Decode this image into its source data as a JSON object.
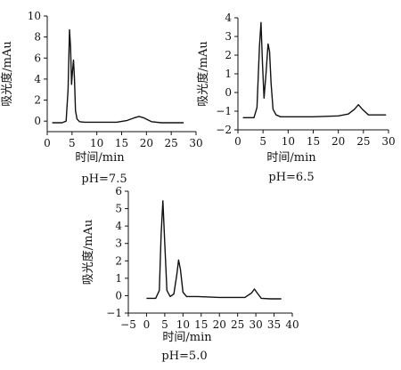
{
  "chart_data": [
    {
      "type": "line",
      "caption": "pH=7.5",
      "xlabel": "时间/min",
      "ylabel": "吸光度/mAu",
      "xlim": [
        0,
        30
      ],
      "ylim": [
        -1,
        10
      ],
      "xticks": [
        0,
        5,
        10,
        15,
        20,
        25,
        30
      ],
      "yticks": [
        0,
        2,
        4,
        6,
        8,
        10
      ],
      "x": [
        1,
        3.0,
        3.8,
        4.2,
        4.5,
        4.7,
        4.9,
        5.1,
        5.3,
        5.5,
        5.7,
        6.0,
        6.5,
        7.5,
        10,
        14,
        16,
        17.5,
        18.5,
        19.5,
        21,
        23,
        27.5
      ],
      "y": [
        -0.15,
        -0.15,
        0.0,
        3.0,
        8.7,
        7.0,
        3.5,
        4.8,
        5.8,
        4.0,
        1.0,
        0.2,
        -0.05,
        -0.1,
        -0.1,
        -0.1,
        0.05,
        0.3,
        0.45,
        0.3,
        -0.05,
        -0.15,
        -0.15
      ]
    },
    {
      "type": "line",
      "caption": "pH=6.5",
      "xlabel": "时间/min",
      "ylabel": "吸光度/mAu",
      "xlim": [
        0,
        30
      ],
      "ylim": [
        -2,
        4
      ],
      "xticks": [
        0,
        5,
        10,
        15,
        20,
        25,
        30
      ],
      "yticks": [
        -2,
        -1,
        0,
        1,
        2,
        3,
        4
      ],
      "x": [
        1,
        3.2,
        3.8,
        4.3,
        4.6,
        4.9,
        5.2,
        5.6,
        6.0,
        6.3,
        6.6,
        7.0,
        7.6,
        8.5,
        10,
        15,
        20,
        22,
        23.2,
        24,
        24.8,
        26,
        29.5
      ],
      "y": [
        -1.35,
        -1.35,
        -0.8,
        2.5,
        3.75,
        1.5,
        -0.3,
        1.0,
        2.6,
        2.2,
        0.5,
        -0.9,
        -1.2,
        -1.3,
        -1.3,
        -1.3,
        -1.25,
        -1.15,
        -0.9,
        -0.65,
        -0.9,
        -1.2,
        -1.2
      ]
    },
    {
      "type": "line",
      "caption": "pH=5.0",
      "xlabel": "时间/min",
      "ylabel": "吸光度/mAu",
      "xlim": [
        -5,
        40
      ],
      "ylim": [
        -1,
        6
      ],
      "xticks": [
        -5,
        0,
        5,
        10,
        15,
        20,
        25,
        30,
        35,
        40
      ],
      "yticks": [
        -1,
        0,
        1,
        2,
        3,
        4,
        5,
        6
      ],
      "x": [
        0,
        2.5,
        3.5,
        4.0,
        4.5,
        5.0,
        5.6,
        6.5,
        7.5,
        8.3,
        8.8,
        9.3,
        10.0,
        11.0,
        14,
        20,
        27,
        28.8,
        29.6,
        30.4,
        31.5,
        34,
        37
      ],
      "y": [
        -0.15,
        -0.15,
        0.3,
        3.5,
        5.45,
        3.0,
        0.3,
        -0.05,
        0.1,
        1.2,
        2.05,
        1.5,
        0.2,
        -0.05,
        -0.05,
        -0.1,
        -0.1,
        0.15,
        0.38,
        0.15,
        -0.15,
        -0.18,
        -0.18
      ]
    }
  ]
}
